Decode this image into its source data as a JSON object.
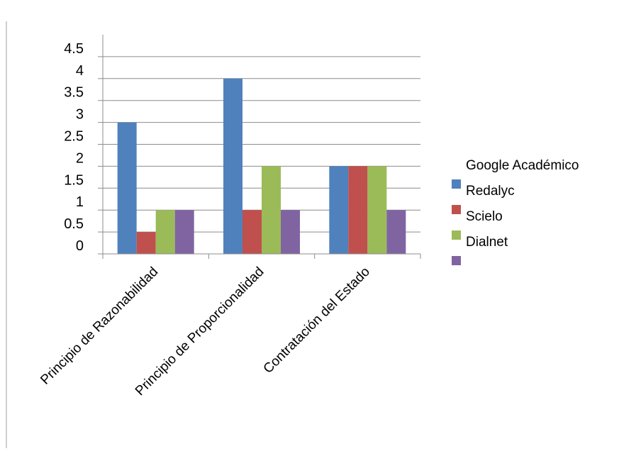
{
  "chart_data": {
    "type": "bar",
    "categories": [
      "Principio de Razonabilidad",
      "Principio de Proporcionalidad",
      "Contratación del Estado"
    ],
    "series": [
      {
        "name": "Google Académico",
        "color": "#4F81BD",
        "values": [
          2.5,
          3.5,
          1.5
        ]
      },
      {
        "name": "Redalyc",
        "color": "#C0504D",
        "values": [
          0,
          0.5,
          1.5
        ]
      },
      {
        "name": "Scielo",
        "color": "#9BBB59",
        "values": [
          0.5,
          1.5,
          1.5
        ]
      },
      {
        "name": "Dialnet",
        "color": "#8064A2",
        "values": [
          0.5,
          0.5,
          0.5
        ]
      }
    ],
    "y_tick_labels": [
      "0",
      "0.5",
      "1",
      "1.5",
      "2",
      "2.5",
      "3",
      "3.5",
      "4",
      "4.5"
    ],
    "ylim": [
      -0.5,
      4.5
    ],
    "title": "",
    "xlabel": "",
    "ylabel": "",
    "grid": true,
    "legend_position": "right"
  }
}
